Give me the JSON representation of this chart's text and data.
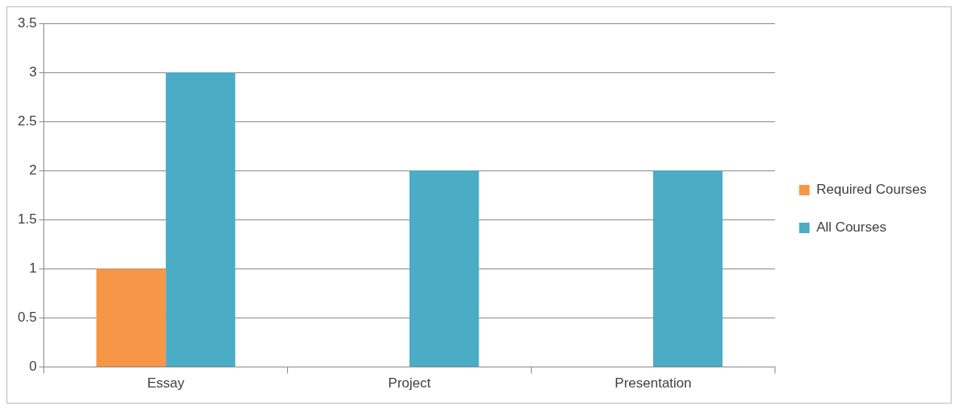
{
  "chart_data": {
    "type": "bar",
    "categories": [
      "Essay",
      "Project",
      "Presentation"
    ],
    "series": [
      {
        "name": "Required Courses",
        "color": "#f79646",
        "values": [
          1,
          0,
          0
        ]
      },
      {
        "name": "All Courses",
        "color": "#4bacc6",
        "values": [
          3,
          2,
          2
        ]
      }
    ],
    "ylim": [
      0,
      3.5
    ],
    "yticks": [
      0,
      0.5,
      1,
      1.5,
      2,
      2.5,
      3,
      3.5
    ],
    "grid": "y",
    "legend": "right"
  }
}
